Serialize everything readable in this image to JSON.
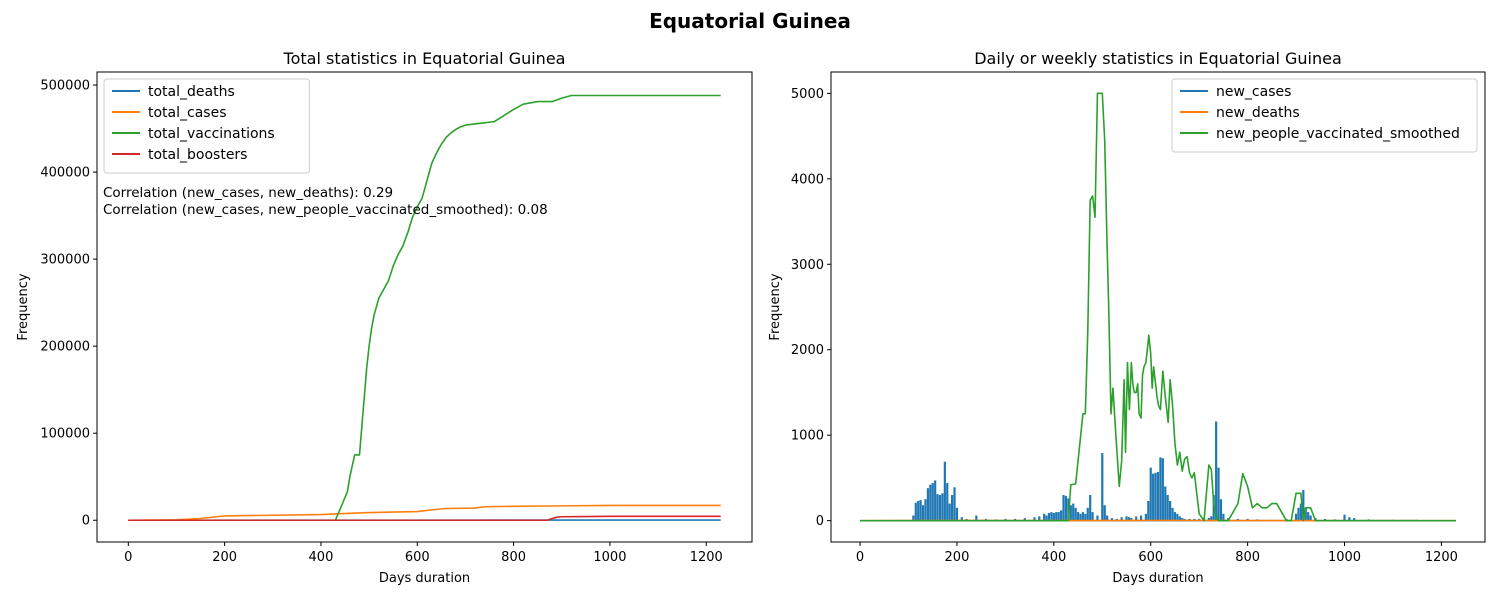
{
  "figure": {
    "title": "Equatorial Guinea"
  },
  "chart_data": [
    {
      "type": "line",
      "title": "Total statistics in Equatorial Guinea",
      "xlabel": "Days duration",
      "ylabel": "Frequency",
      "xlim": [
        -65,
        1295
      ],
      "ylim": [
        -25000,
        515000
      ],
      "xticks": [
        0,
        200,
        400,
        600,
        800,
        1000,
        1200
      ],
      "yticks": [
        0,
        100000,
        200000,
        300000,
        400000,
        500000
      ],
      "legend_position": "top-left",
      "annotations": [
        "Correlation (new_cases, new_deaths): 0.29",
        "Correlation (new_cases, new_people_vaccinated_smoothed): 0.08"
      ],
      "series": [
        {
          "name": "total_deaths",
          "color": "#1f77b4",
          "x": [
            0,
            200,
            400,
            600,
            800,
            900,
            1000,
            1230
          ],
          "y": [
            0,
            60,
            90,
            120,
            170,
            175,
            176,
            176
          ]
        },
        {
          "name": "total_cases",
          "color": "#ff7f0e",
          "x": [
            0,
            100,
            150,
            200,
            400,
            440,
            500,
            600,
            640,
            660,
            720,
            740,
            800,
            900,
            1000,
            1230
          ],
          "y": [
            0,
            500,
            2000,
            5000,
            6500,
            7500,
            8800,
            10000,
            12500,
            13500,
            14000,
            15500,
            16000,
            16500,
            17000,
            17000
          ]
        },
        {
          "name": "total_vaccinations",
          "color": "#2ca02c",
          "x": [
            0,
            430,
            440,
            455,
            460,
            470,
            480,
            495,
            500,
            505,
            510,
            520,
            530,
            540,
            550,
            560,
            570,
            580,
            590,
            600,
            610,
            620,
            630,
            640,
            650,
            660,
            670,
            680,
            690,
            700,
            730,
            760,
            780,
            800,
            820,
            850,
            880,
            900,
            920,
            950,
            1000,
            1230
          ],
          "y": [
            0,
            0,
            13000,
            33000,
            50000,
            75000,
            75000,
            175000,
            200000,
            220000,
            235000,
            255000,
            265000,
            275000,
            292000,
            305000,
            315000,
            330000,
            348000,
            360000,
            370000,
            390000,
            410000,
            422000,
            432000,
            440000,
            445000,
            449000,
            452000,
            454000,
            456000,
            458000,
            465000,
            472000,
            478000,
            481000,
            481000,
            485000,
            488000,
            488000,
            488000,
            488000
          ]
        },
        {
          "name": "total_boosters",
          "color": "#d62728",
          "x": [
            0,
            870,
            880,
            890,
            900,
            950,
            1000,
            1230
          ],
          "y": [
            0,
            0,
            2000,
            3500,
            4000,
            4200,
            4500,
            4500
          ]
        }
      ]
    },
    {
      "type": "line",
      "title": "Daily or weekly statistics in Equatorial Guinea",
      "xlabel": "Days duration",
      "ylabel": "Frequency",
      "xlim": [
        -60,
        1290
      ],
      "ylim": [
        -250,
        5250
      ],
      "xticks": [
        0,
        200,
        400,
        600,
        800,
        1000,
        1200
      ],
      "yticks": [
        0,
        1000,
        2000,
        3000,
        4000,
        5000
      ],
      "legend_position": "top-right",
      "series": [
        {
          "name": "new_cases",
          "color": "#1f77b4",
          "style": "spikes",
          "x": [
            110,
            115,
            120,
            125,
            130,
            135,
            140,
            145,
            150,
            155,
            160,
            165,
            170,
            175,
            180,
            185,
            190,
            195,
            200,
            210,
            220,
            240,
            260,
            280,
            300,
            320,
            340,
            360,
            370,
            380,
            385,
            390,
            395,
            400,
            405,
            410,
            415,
            420,
            425,
            430,
            435,
            440,
            445,
            450,
            455,
            460,
            465,
            470,
            475,
            480,
            490,
            500,
            505,
            510,
            520,
            530,
            540,
            550,
            555,
            560,
            570,
            580,
            590,
            595,
            600,
            605,
            610,
            615,
            620,
            625,
            630,
            635,
            640,
            645,
            650,
            655,
            660,
            665,
            670,
            680,
            690,
            700,
            710,
            720,
            725,
            730,
            735,
            740,
            745,
            750,
            760,
            780,
            800,
            820,
            850,
            880,
            900,
            905,
            910,
            915,
            920,
            925,
            930,
            940,
            960,
            980,
            1000,
            1010,
            1020,
            1050,
            1100,
            1150
          ],
          "y": [
            60,
            210,
            230,
            240,
            180,
            250,
            380,
            420,
            440,
            470,
            310,
            300,
            320,
            690,
            440,
            200,
            300,
            390,
            150,
            40,
            20,
            60,
            20,
            15,
            20,
            20,
            30,
            40,
            50,
            80,
            60,
            90,
            100,
            90,
            100,
            100,
            120,
            300,
            290,
            260,
            180,
            200,
            150,
            100,
            80,
            100,
            80,
            150,
            300,
            100,
            60,
            790,
            180,
            60,
            30,
            20,
            40,
            50,
            40,
            30,
            50,
            60,
            80,
            230,
            620,
            550,
            560,
            570,
            740,
            730,
            400,
            300,
            230,
            150,
            100,
            80,
            50,
            30,
            20,
            20,
            20,
            20,
            20,
            30,
            50,
            300,
            1160,
            620,
            250,
            80,
            30,
            20,
            20,
            15,
            10,
            20,
            80,
            150,
            200,
            360,
            150,
            100,
            60,
            30,
            20,
            15,
            70,
            40,
            30,
            15,
            10,
            10
          ]
        },
        {
          "name": "new_deaths",
          "color": "#ff7f0e",
          "x": [
            0,
            200,
            400,
            600,
            800,
            1000,
            1230
          ],
          "y": [
            0,
            2,
            1,
            3,
            1,
            0,
            0
          ]
        },
        {
          "name": "new_people_vaccinated_smoothed",
          "color": "#2ca02c",
          "x": [
            0,
            430,
            435,
            445,
            450,
            460,
            465,
            470,
            475,
            480,
            485,
            490,
            495,
            500,
            505,
            510,
            513,
            518,
            522,
            528,
            535,
            540,
            545,
            548,
            552,
            556,
            560,
            563,
            566,
            570,
            573,
            576,
            580,
            583,
            586,
            590,
            593,
            596,
            600,
            603,
            606,
            610,
            613,
            616,
            620,
            625,
            630,
            633,
            636,
            640,
            645,
            650,
            655,
            660,
            665,
            670,
            675,
            680,
            685,
            690,
            700,
            710,
            720,
            725,
            730,
            735,
            740,
            760,
            780,
            790,
            800,
            810,
            820,
            830,
            840,
            850,
            860,
            880,
            890,
            900,
            910,
            915,
            920,
            930,
            940,
            1000,
            1230
          ],
          "y": [
            0,
            0,
            420,
            430,
            700,
            1250,
            1250,
            2200,
            3750,
            3800,
            3550,
            5000,
            5000,
            5000,
            4450,
            3200,
            2550,
            1250,
            1550,
            1000,
            400,
            700,
            1650,
            800,
            1850,
            1300,
            1850,
            1600,
            1500,
            1500,
            1600,
            1250,
            1200,
            1700,
            1800,
            1850,
            2000,
            2170,
            1950,
            1550,
            1800,
            1600,
            1450,
            1350,
            1300,
            1750,
            1450,
            1300,
            1150,
            1650,
            1350,
            900,
            650,
            800,
            580,
            720,
            750,
            560,
            500,
            560,
            80,
            0,
            650,
            600,
            200,
            50,
            0,
            0,
            200,
            550,
            400,
            150,
            200,
            150,
            150,
            200,
            200,
            0,
            0,
            320,
            320,
            0,
            150,
            150,
            0,
            0,
            0
          ]
        }
      ]
    }
  ]
}
